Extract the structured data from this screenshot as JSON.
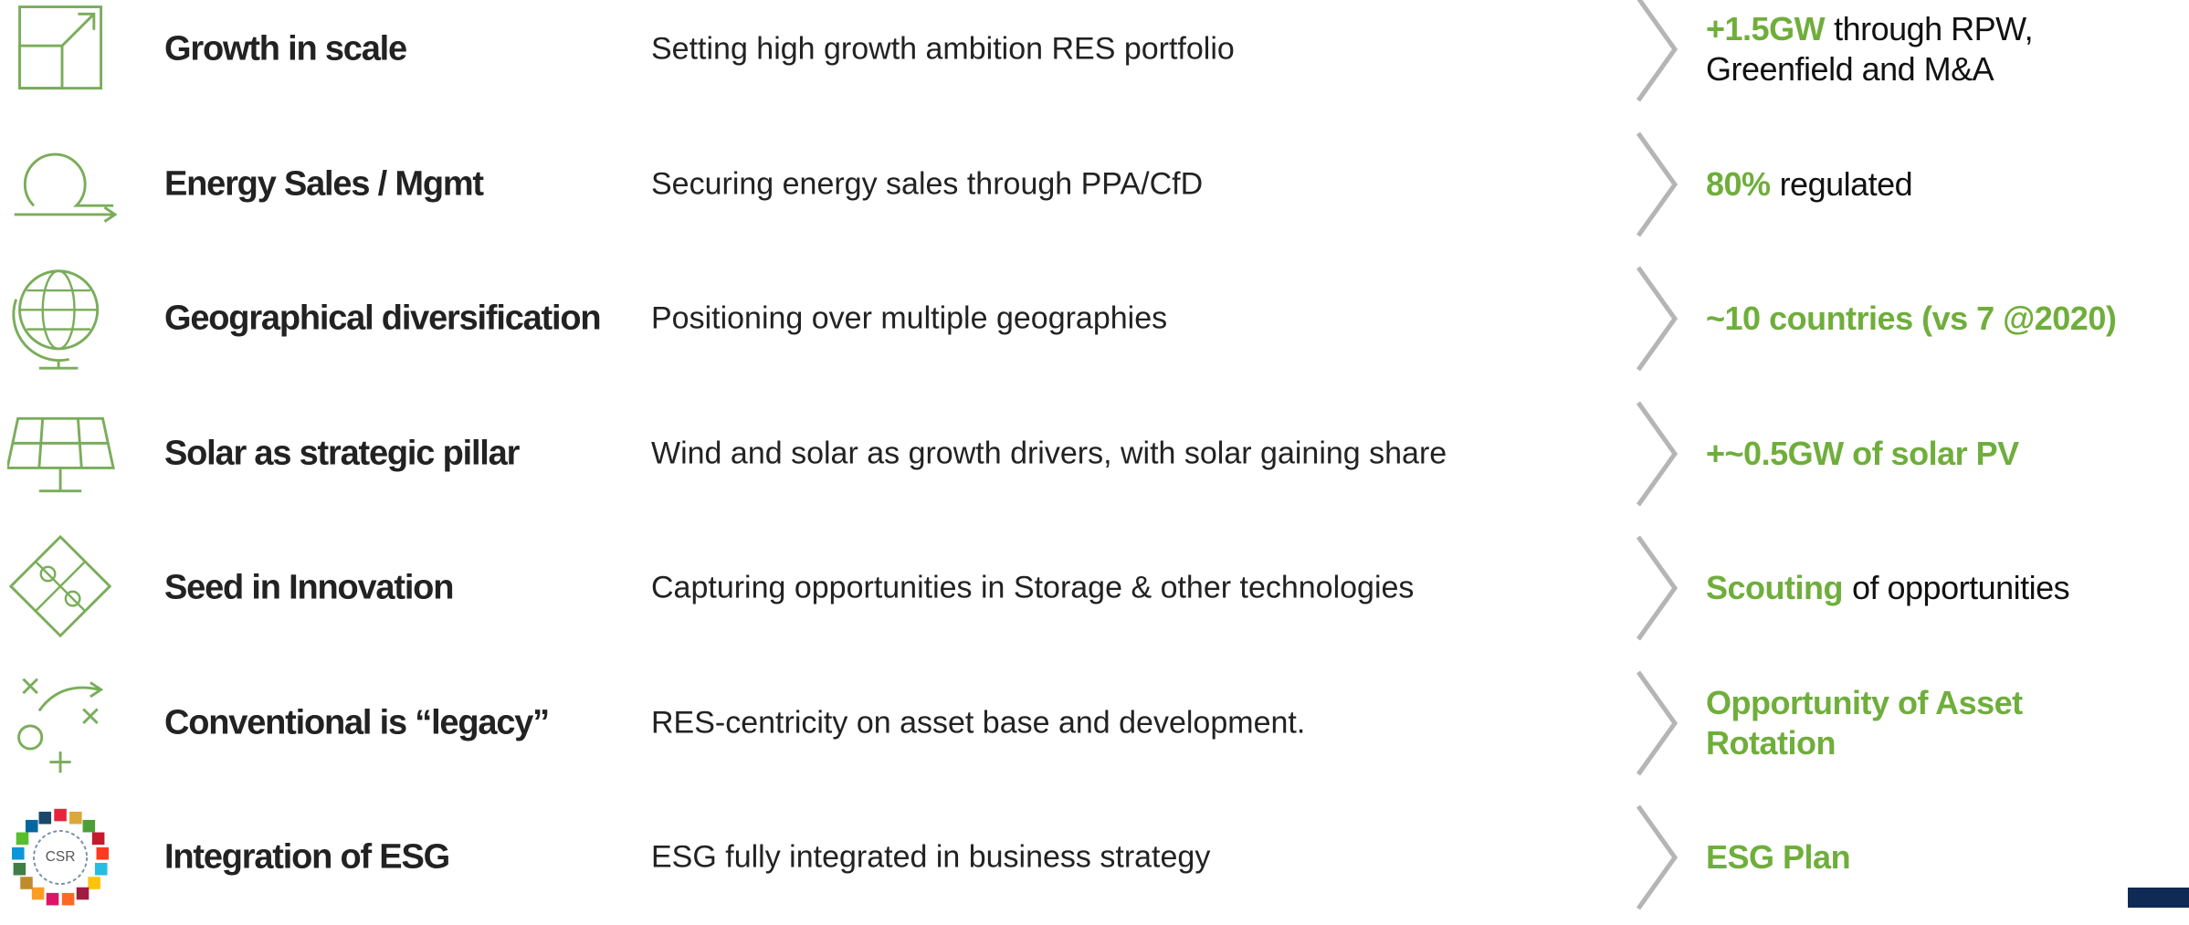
{
  "rows": [
    {
      "title": "Growth in scale",
      "description": "Setting high growth ambition RES portfolio",
      "outcome_highlight": "+1.5GW",
      "outcome_rest": "through RPW, Greenfield and M&A"
    },
    {
      "title": "Energy Sales / Mgmt",
      "description": "Securing energy sales through PPA/CfD",
      "outcome_highlight": "80%",
      "outcome_rest": "regulated"
    },
    {
      "title": "Geographical diversification",
      "description": "Positioning over multiple geographies",
      "outcome_highlight": "~10 countries (vs 7 @2020)"
    },
    {
      "title": "Solar as strategic pillar",
      "description": "Wind and solar as growth drivers, with solar gaining share",
      "outcome_highlight": "+~0.5GW of solar PV"
    },
    {
      "title": "Seed in Innovation",
      "description": "Capturing opportunities in Storage & other technologies",
      "outcome_highlight": "Scouting",
      "outcome_rest": "of opportunities"
    },
    {
      "title": "Conventional is “legacy”",
      "description": "RES-centricity on asset base and development.",
      "outcome_highlight": "Opportunity of Asset Rotation"
    },
    {
      "title": "Integration of ESG",
      "description": "ESG fully integrated in business strategy",
      "outcome_highlight": "ESG Plan",
      "icon_text": "CSR"
    }
  ]
}
